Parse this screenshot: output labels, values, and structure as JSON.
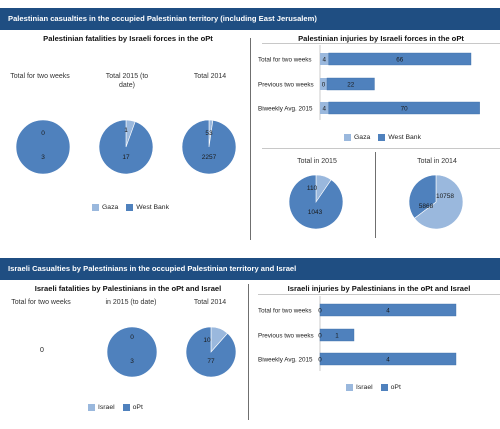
{
  "colors": {
    "banner": "#1f4e82",
    "light": "#9ab8dd",
    "dark": "#4f81bd",
    "bar_border": "#3c6ea8"
  },
  "section1": {
    "banner": "Palestinian casualties in the occupied Palestinian territory (including East Jerusalem)",
    "fatalities_title": "Palestinian fatalities by Israeli forces in the oPt",
    "injuries_title": "Palestinian injuries by Israeli forces in the oPt",
    "legend": [
      "Gaza",
      "West Bank"
    ]
  },
  "section2": {
    "banner": "Israeli Casualties by Palestinians in the occupied Palestinian territory and Israel",
    "fatalities_title": "Israeli fatalities by Palestinians in the oPt and Israel",
    "injuries_title": "Israeli injuries by Palestinians in the oPt and Israel",
    "legend": [
      "Israel",
      "oPt"
    ],
    "zero_label": "0"
  },
  "chart_data": [
    {
      "id": "pal_fatalities",
      "type": "pie",
      "title": "Palestinian fatalities by Israeli forces in the oPt",
      "series_names": [
        "Gaza",
        "West Bank"
      ],
      "pies": [
        {
          "label": "Total for two weeks",
          "values": [
            0,
            3
          ]
        },
        {
          "label": "Total 2015 (to date)",
          "values": [
            1,
            17
          ]
        },
        {
          "label": "Total 2014",
          "values": [
            53,
            2257
          ]
        }
      ]
    },
    {
      "id": "pal_injuries",
      "type": "bar",
      "title": "Palestinian injuries by Israeli forces in the oPt",
      "orientation": "horizontal",
      "stacked": true,
      "categories": [
        "Total for two weeks",
        "Previous two weeks",
        "Biweekly Avg. 2015"
      ],
      "series": [
        {
          "name": "Gaza",
          "values": [
            4,
            0,
            4
          ]
        },
        {
          "name": "West Bank",
          "values": [
            66,
            22,
            70
          ]
        }
      ]
    },
    {
      "id": "pal_injuries_totals",
      "type": "pie",
      "series_names": [
        "Gaza",
        "West Bank"
      ],
      "pies": [
        {
          "label": "Total in 2015",
          "values": [
            110,
            1043
          ]
        },
        {
          "label": "Total in 2014",
          "values": [
            10758,
            5868
          ]
        }
      ]
    },
    {
      "id": "isr_fatalities",
      "type": "pie",
      "title": "Israeli fatalities by Palestinians in the oPt and Israel",
      "series_names": [
        "Israel",
        "oPt"
      ],
      "pies": [
        {
          "label": "Total for two weeks",
          "values": [
            0,
            0
          ]
        },
        {
          "label": "in 2015 (to date)",
          "values": [
            0,
            3
          ]
        },
        {
          "label": "Total 2014",
          "values": [
            10,
            77
          ]
        }
      ]
    },
    {
      "id": "isr_injuries",
      "type": "bar",
      "title": "Israeli injuries by Palestinians in the oPt and Israel",
      "orientation": "horizontal",
      "stacked": true,
      "categories": [
        "Total for two weeks",
        "Previous two weeks",
        "Biweekly Avg. 2015"
      ],
      "series": [
        {
          "name": "Israel",
          "values": [
            0,
            0,
            0
          ]
        },
        {
          "name": "oPt",
          "values": [
            4,
            1,
            4
          ]
        }
      ]
    }
  ]
}
